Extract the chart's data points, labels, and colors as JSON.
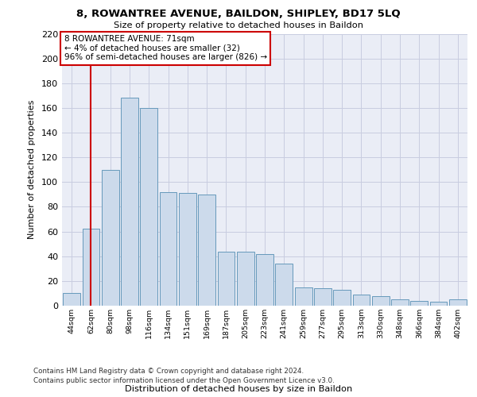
{
  "title_line1": "8, ROWANTREE AVENUE, BAILDON, SHIPLEY, BD17 5LQ",
  "title_line2": "Size of property relative to detached houses in Baildon",
  "xlabel": "Distribution of detached houses by size in Baildon",
  "ylabel": "Number of detached properties",
  "categories": [
    "44sqm",
    "62sqm",
    "80sqm",
    "98sqm",
    "116sqm",
    "134sqm",
    "151sqm",
    "169sqm",
    "187sqm",
    "205sqm",
    "223sqm",
    "241sqm",
    "259sqm",
    "277sqm",
    "295sqm",
    "313sqm",
    "330sqm",
    "348sqm",
    "366sqm",
    "384sqm",
    "402sqm"
  ],
  "values": [
    10,
    62,
    110,
    168,
    160,
    92,
    91,
    90,
    44,
    44,
    42,
    34,
    15,
    14,
    13,
    9,
    8,
    5,
    4,
    3,
    5
  ],
  "bar_color": "#ccdaeb",
  "bar_edge_color": "#6699bb",
  "vline_x": 1.0,
  "vline_color": "#cc0000",
  "annotation_text": "8 ROWANTREE AVENUE: 71sqm\n← 4% of detached houses are smaller (32)\n96% of semi-detached houses are larger (826) →",
  "annotation_box_facecolor": "#ffffff",
  "annotation_box_edgecolor": "#cc0000",
  "ylim_max": 220,
  "yticks": [
    0,
    20,
    40,
    60,
    80,
    100,
    120,
    140,
    160,
    180,
    200,
    220
  ],
  "footer_line1": "Contains HM Land Registry data © Crown copyright and database right 2024.",
  "footer_line2": "Contains public sector information licensed under the Open Government Licence v3.0.",
  "grid_color": "#c8cce0",
  "bg_color": "#eaedf6",
  "fig_facecolor": "#ffffff"
}
